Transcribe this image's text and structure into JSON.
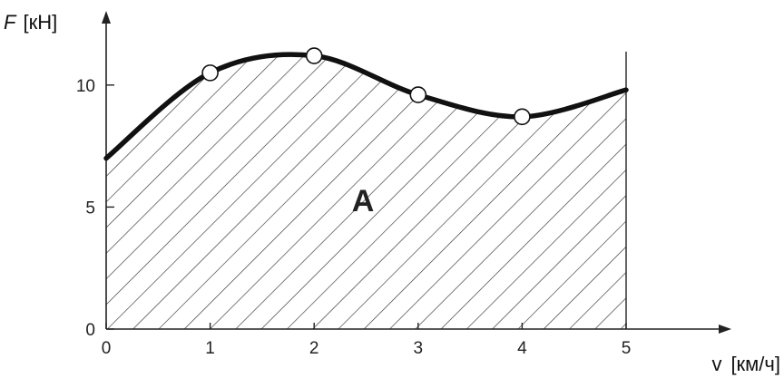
{
  "chart_data": {
    "type": "area",
    "title": "",
    "ylabel": {
      "symbol": "F",
      "unit": "[кН]"
    },
    "xlabel": {
      "symbol": "v",
      "unit": "[км/ч]"
    },
    "xlim": [
      0,
      5
    ],
    "ylim": [
      0,
      12
    ],
    "x_ticks": [
      "0",
      "1",
      "2",
      "3",
      "4",
      "5"
    ],
    "y_ticks": [
      "0",
      "5",
      "10"
    ],
    "series": [
      {
        "x": [
          0,
          1,
          2,
          3,
          4,
          5
        ],
        "y": [
          7.0,
          10.5,
          11.2,
          9.6,
          8.7,
          9.8
        ]
      }
    ],
    "marked_points": [
      {
        "x": 1,
        "y": 10.5
      },
      {
        "x": 2,
        "y": 11.2
      },
      {
        "x": 3,
        "y": 9.6
      },
      {
        "x": 4,
        "y": 8.7
      }
    ],
    "area_label": "A",
    "area_fill": "diagonal-hatch",
    "colors": {
      "curve": "#111111",
      "axis": "#222222",
      "hatch": "#333333",
      "marker_fill": "#ffffff"
    }
  }
}
